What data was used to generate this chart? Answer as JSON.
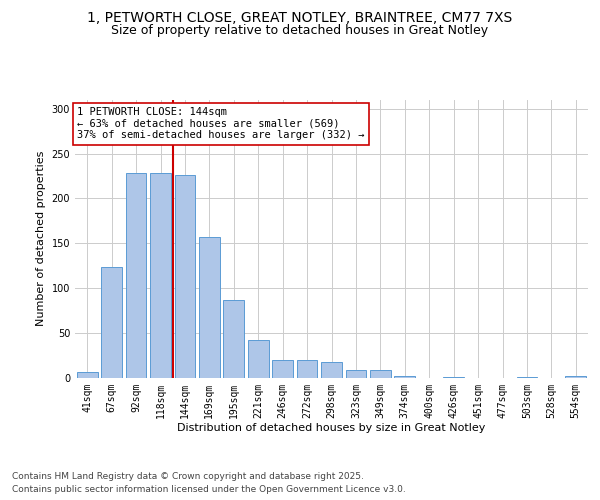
{
  "title_line1": "1, PETWORTH CLOSE, GREAT NOTLEY, BRAINTREE, CM77 7XS",
  "title_line2": "Size of property relative to detached houses in Great Notley",
  "xlabel": "Distribution of detached houses by size in Great Notley",
  "ylabel": "Number of detached properties",
  "categories": [
    "41sqm",
    "67sqm",
    "92sqm",
    "118sqm",
    "144sqm",
    "169sqm",
    "195sqm",
    "221sqm",
    "246sqm",
    "272sqm",
    "298sqm",
    "323sqm",
    "349sqm",
    "374sqm",
    "400sqm",
    "426sqm",
    "451sqm",
    "477sqm",
    "503sqm",
    "528sqm",
    "554sqm"
  ],
  "values": [
    6,
    123,
    228,
    228,
    226,
    157,
    87,
    42,
    19,
    19,
    17,
    8,
    8,
    2,
    0,
    1,
    0,
    0,
    1,
    0,
    2
  ],
  "bar_color": "#aec6e8",
  "bar_edge_color": "#5b9bd5",
  "vline_color": "#cc0000",
  "annotation_text": "1 PETWORTH CLOSE: 144sqm\n← 63% of detached houses are smaller (569)\n37% of semi-detached houses are larger (332) →",
  "annotation_box_color": "#ffffff",
  "ylim": [
    0,
    310
  ],
  "yticks": [
    0,
    50,
    100,
    150,
    200,
    250,
    300
  ],
  "grid_color": "#cccccc",
  "background_color": "#ffffff",
  "footer_line1": "Contains HM Land Registry data © Crown copyright and database right 2025.",
  "footer_line2": "Contains public sector information licensed under the Open Government Licence v3.0.",
  "title_fontsize": 10,
  "subtitle_fontsize": 9,
  "axis_label_fontsize": 8,
  "tick_fontsize": 7,
  "annotation_fontsize": 7.5,
  "footer_fontsize": 6.5
}
